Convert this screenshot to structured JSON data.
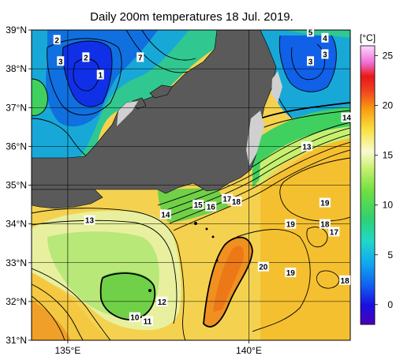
{
  "title": "Daily 200m temperatures 18 Jul. 2019.",
  "lat_ticks": [
    {
      "lat": 39,
      "label": "39°N"
    },
    {
      "lat": 38,
      "label": "38°N"
    },
    {
      "lat": 37,
      "label": "37°N"
    },
    {
      "lat": 36,
      "label": "36°N"
    },
    {
      "lat": 35,
      "label": "35°N"
    },
    {
      "lat": 34,
      "label": "34°N"
    },
    {
      "lat": 33,
      "label": "33°N"
    },
    {
      "lat": 32,
      "label": "32°N"
    },
    {
      "lat": 31,
      "label": "31°N"
    }
  ],
  "lon_ticks": [
    {
      "lon": 135,
      "label": "135°E"
    },
    {
      "lon": 140,
      "label": "140°E"
    }
  ],
  "colorbar": {
    "unit": "[°C]",
    "ticks": [
      {
        "value": 0,
        "label": "0"
      },
      {
        "value": 5,
        "label": "5"
      },
      {
        "value": 10,
        "label": "10"
      },
      {
        "value": 15,
        "label": "15"
      },
      {
        "value": 20,
        "label": "20"
      },
      {
        "value": 25,
        "label": "25"
      }
    ]
  },
  "contour_labels": [
    {
      "text": "2",
      "lon": 134.7,
      "lat": 38.75
    },
    {
      "text": "3",
      "lon": 134.8,
      "lat": 38.2
    },
    {
      "text": "2",
      "lon": 135.5,
      "lat": 38.3
    },
    {
      "text": "1",
      "lon": 135.9,
      "lat": 37.85
    },
    {
      "text": "7",
      "lon": 137.0,
      "lat": 38.3
    },
    {
      "text": "5",
      "lon": 141.7,
      "lat": 38.95
    },
    {
      "text": "4",
      "lon": 142.1,
      "lat": 38.8
    },
    {
      "text": "3",
      "lon": 141.7,
      "lat": 38.2
    },
    {
      "text": "3",
      "lon": 142.1,
      "lat": 38.38
    },
    {
      "text": "14",
      "lon": 142.7,
      "lat": 36.75
    },
    {
      "text": "13",
      "lon": 141.6,
      "lat": 36.0
    },
    {
      "text": "13",
      "lon": 135.6,
      "lat": 34.1
    },
    {
      "text": "14",
      "lon": 137.7,
      "lat": 34.25
    },
    {
      "text": "15",
      "lon": 138.6,
      "lat": 34.5
    },
    {
      "text": "16",
      "lon": 138.95,
      "lat": 34.45
    },
    {
      "text": "17",
      "lon": 139.4,
      "lat": 34.65
    },
    {
      "text": "18",
      "lon": 139.65,
      "lat": 34.58
    },
    {
      "text": "19",
      "lon": 142.1,
      "lat": 34.55
    },
    {
      "text": "19",
      "lon": 141.15,
      "lat": 34.0
    },
    {
      "text": "18",
      "lon": 142.1,
      "lat": 34.0
    },
    {
      "text": "17",
      "lon": 142.35,
      "lat": 33.8
    },
    {
      "text": "20",
      "lon": 140.4,
      "lat": 32.9
    },
    {
      "text": "19",
      "lon": 141.15,
      "lat": 32.75
    },
    {
      "text": "18",
      "lon": 142.65,
      "lat": 32.55
    },
    {
      "text": "12",
      "lon": 137.6,
      "lat": 32.0
    },
    {
      "text": "10",
      "lon": 136.85,
      "lat": 31.6
    },
    {
      "text": "11",
      "lon": 137.2,
      "lat": 31.5
    }
  ]
}
